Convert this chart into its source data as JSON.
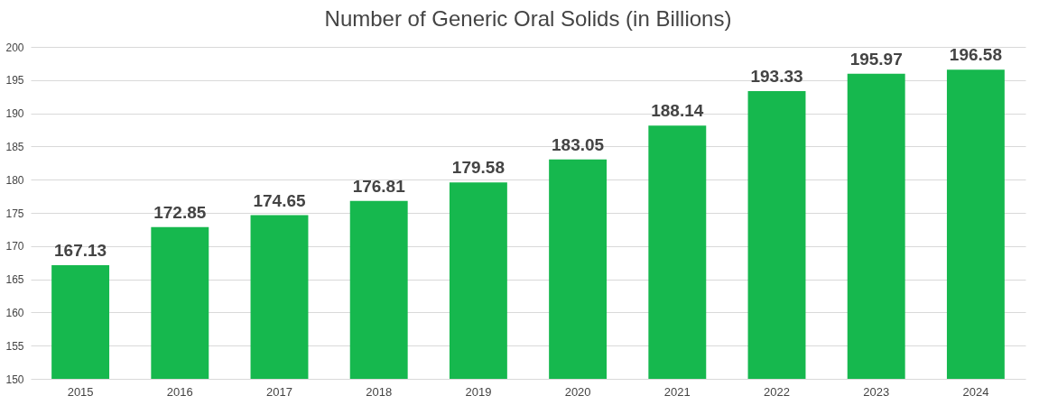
{
  "chart_data": {
    "type": "bar",
    "title": "Number of Generic Oral Solids (in Billions)",
    "categories": [
      "2015",
      "2016",
      "2017",
      "2018",
      "2019",
      "2020",
      "2021",
      "2022",
      "2023",
      "2024"
    ],
    "values": [
      167.13,
      172.85,
      174.65,
      176.81,
      179.58,
      183.05,
      188.14,
      193.33,
      195.97,
      196.58
    ],
    "color": "#16b84e",
    "ylim": [
      150,
      200
    ],
    "yticks": [
      150,
      155,
      160,
      165,
      170,
      175,
      180,
      185,
      190,
      195,
      200
    ],
    "grid": "y",
    "data_labels": true
  }
}
